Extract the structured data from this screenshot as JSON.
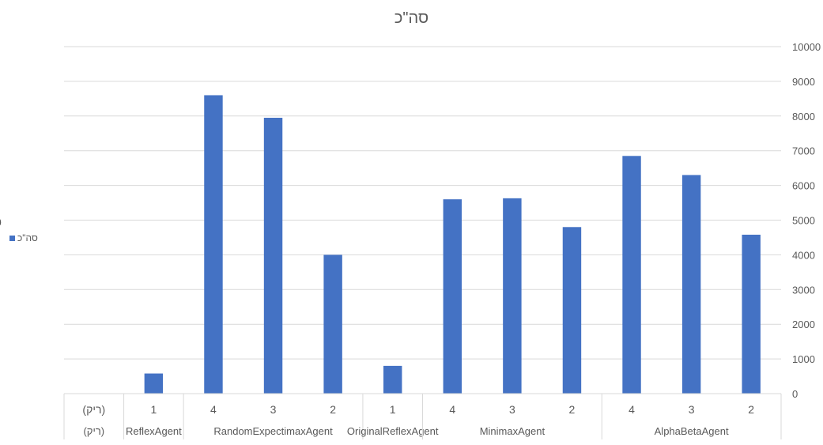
{
  "chart_data": {
    "type": "bar",
    "title": "סה\"כ",
    "legend": {
      "entries": [
        "סה\"כ"
      ],
      "placement": "left"
    },
    "y_axis": {
      "side": "right",
      "min": 0,
      "max": 10000,
      "step": 1000,
      "ticks": [
        "0",
        "1000",
        "2000",
        "3000",
        "4000",
        "5000",
        "6000",
        "7000",
        "8000",
        "9000",
        "10000"
      ]
    },
    "grid": true,
    "color": "#4472c4",
    "groups": [
      {
        "label": "(ריק)",
        "categories": [
          "(ריק)"
        ],
        "values": [
          null
        ]
      },
      {
        "label": "ReflexAgent",
        "categories": [
          "1"
        ],
        "values": [
          580
        ]
      },
      {
        "label": "RandomExpectimaxAgent",
        "categories": [
          "4",
          "3",
          "2"
        ],
        "values": [
          8600,
          7950,
          4000
        ]
      },
      {
        "label": "OriginalReflexAgent",
        "categories": [
          "1"
        ],
        "values": [
          800
        ]
      },
      {
        "label": "MinimaxAgent",
        "categories": [
          "4",
          "3",
          "2"
        ],
        "values": [
          5600,
          5630,
          4800
        ]
      },
      {
        "label": "AlphaBetaAgent",
        "categories": [
          "4",
          "3",
          "2"
        ],
        "values": [
          6850,
          6300,
          4580
        ]
      }
    ],
    "series": [
      {
        "name": "סה\"כ"
      }
    ]
  }
}
